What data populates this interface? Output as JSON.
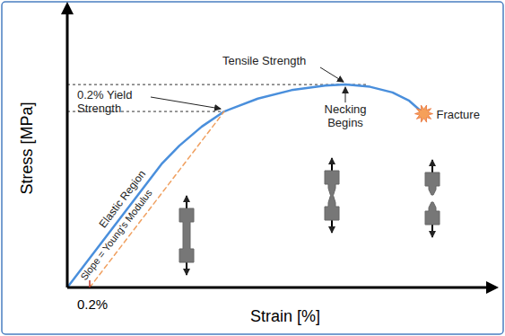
{
  "chart_data": {
    "type": "line",
    "x_label": "Strain [%]",
    "y_label": "Stress [MPa]",
    "xlim": [
      0,
      3.8
    ],
    "ylim": [
      0,
      500
    ],
    "xticks": [
      {
        "value": 0.2,
        "label": "0.2%"
      }
    ],
    "yticks": [],
    "tick_labels": "x",
    "grid": false,
    "series": [
      {
        "color": "#4a8fdc",
        "line_style": "solid",
        "x": [
          0,
          0.84,
          1.0,
          1.2,
          1.4,
          1.7,
          2.0,
          2.3,
          2.48,
          2.7,
          2.9,
          3.05,
          3.18
        ],
        "values": [
          0,
          220,
          253,
          287,
          314,
          337,
          352,
          360,
          362,
          358,
          348,
          333,
          310
        ]
      },
      {
        "color": "#f0a060",
        "line_style": "dashed",
        "x": [
          0.2,
          1.4
        ],
        "values": [
          0,
          314
        ]
      }
    ],
    "elastic_label": "Elastic Region",
    "slope_label": "Slope = Young's Modulus",
    "annotations": [
      {
        "text": "Tensile Strength",
        "x": 2.48,
        "y": 362
      },
      {
        "text": "0.2% Yield\nStrength",
        "x": 1.4,
        "y": 314
      },
      {
        "text": "Necking\nBegins",
        "x": 2.48,
        "y": 362
      },
      {
        "text": "Fracture",
        "x": 3.18,
        "y": 310
      }
    ]
  }
}
